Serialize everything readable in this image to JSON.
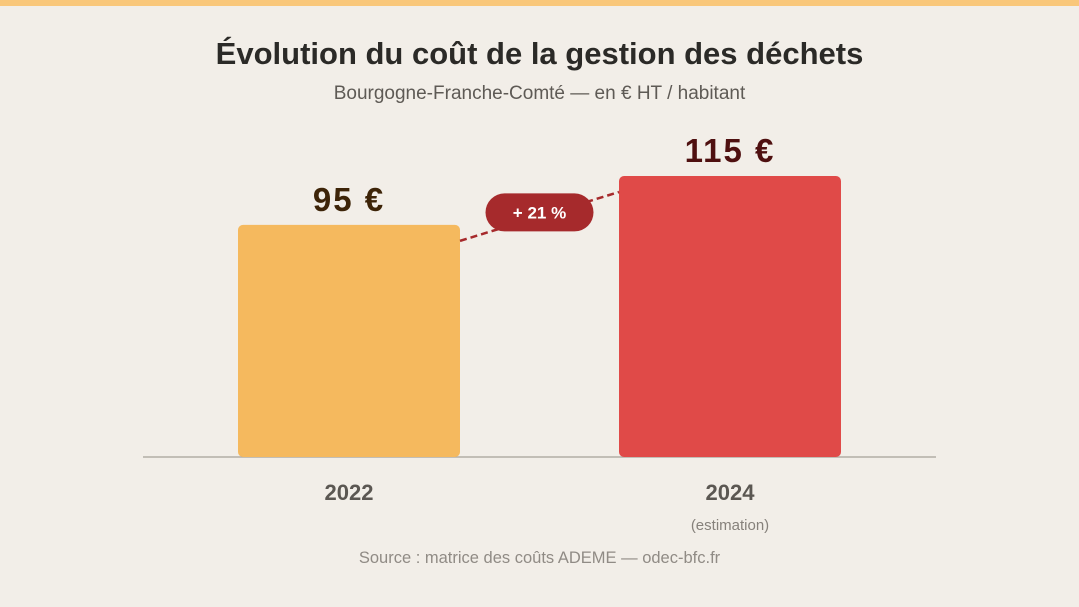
{
  "title": "Évolution du coût de la gestion des déchets",
  "subtitle": "Bourgogne-Franche-Comté — en € HT / habitant",
  "source": "Source : matrice des coûts ADEME — odec-bfc.fr",
  "chart_data": {
    "type": "bar",
    "categories": [
      "2022",
      "2024"
    ],
    "category_notes": [
      "",
      "(estimation)"
    ],
    "values": [
      95,
      115
    ],
    "value_labels": [
      "95 €",
      "115 €"
    ],
    "ylim": [
      0,
      115
    ],
    "bar_colors": [
      "#f5b95e",
      "#e04a48"
    ],
    "value_label_colors": [
      "#3d2408",
      "#4f1010"
    ],
    "change_label": "+ 21 %",
    "change_color": "#a62a2c",
    "grid": false,
    "legend": "none"
  }
}
